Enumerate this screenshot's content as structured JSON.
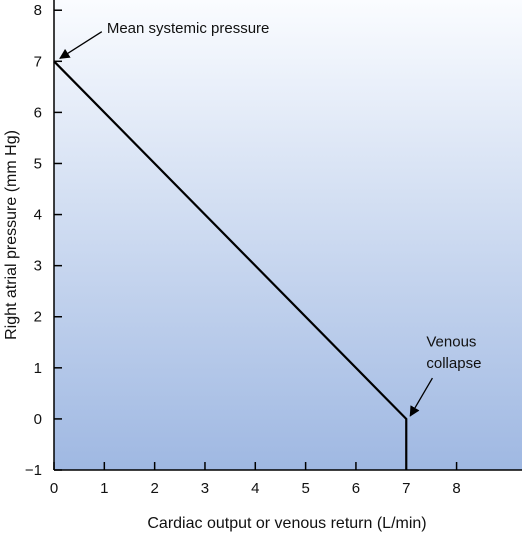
{
  "chart_data": {
    "type": "line",
    "title": "",
    "xlabel": "Cardiac output or venous return (L/min)",
    "ylabel": "Right atrial pressure (mm Hg)",
    "xlim": [
      0,
      9.3
    ],
    "ylim": [
      -1,
      8.2
    ],
    "x_ticks": [
      "0",
      "1",
      "2",
      "3",
      "4",
      "5",
      "6",
      "7",
      "8"
    ],
    "y_ticks": [
      "−1",
      "0",
      "1",
      "2",
      "3",
      "4",
      "5",
      "6",
      "7",
      "8"
    ],
    "grid": false,
    "legend": "none",
    "series": [
      {
        "points": [
          {
            "x": 0,
            "y": 7
          },
          {
            "x": 7,
            "y": 0
          },
          {
            "x": 7,
            "y": -1
          }
        ]
      }
    ],
    "annotations": [
      {
        "line1": "Mean systemic pressure",
        "line2": "",
        "target": {
          "x": 0,
          "y": 7
        }
      },
      {
        "line1": "Venous",
        "line2": "collapse",
        "target": {
          "x": 7,
          "y": 0
        }
      }
    ],
    "colors": {
      "line": "#000000",
      "gradient_top": "#fafcff",
      "gradient_bottom": "#9fb8e2"
    }
  }
}
